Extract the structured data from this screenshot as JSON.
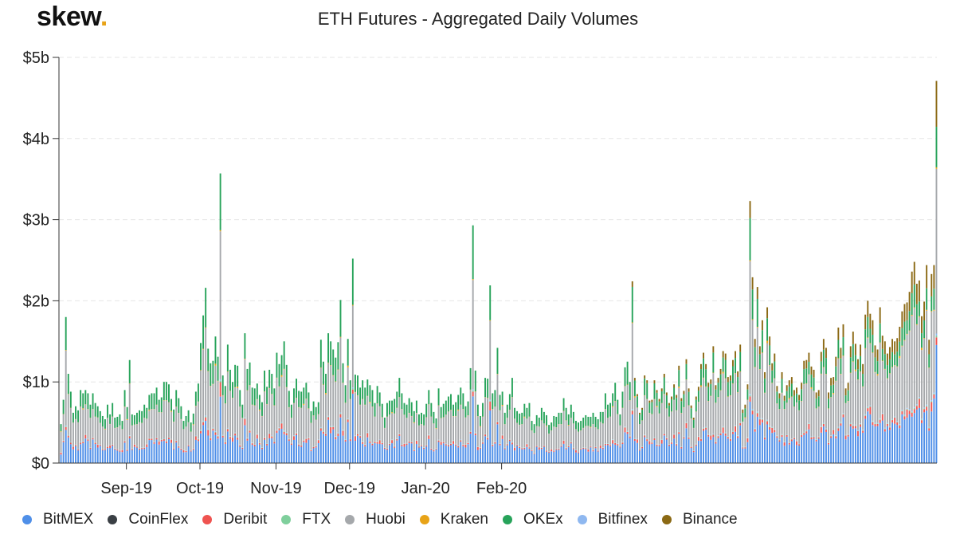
{
  "brand": {
    "name": "skew",
    "dot": "."
  },
  "chart_data": {
    "type": "bar",
    "stacked": true,
    "title": "ETH Futures - Aggregated Daily Volumes",
    "ylabel": "",
    "xlabel": "",
    "ylim": [
      0,
      5
    ],
    "y_ticks": [
      {
        "value": 0,
        "label": "$0"
      },
      {
        "value": 1,
        "label": "$1b"
      },
      {
        "value": 2,
        "label": "$2b"
      },
      {
        "value": 3,
        "label": "$3b"
      },
      {
        "value": 4,
        "label": "$4b"
      },
      {
        "value": 5,
        "label": "$5b"
      }
    ],
    "x_ticks": [
      {
        "index": 27,
        "label": "Sep-19"
      },
      {
        "index": 57,
        "label": "Oct-19"
      },
      {
        "index": 88,
        "label": "Nov-19"
      },
      {
        "index": 118,
        "label": "Dec-19"
      },
      {
        "index": 149,
        "label": "Jan-20"
      },
      {
        "index": 180,
        "label": "Feb-20"
      }
    ],
    "grid": true,
    "legend_position": "bottom",
    "series": [
      {
        "name": "BitMEX",
        "color": "#4f8fe8"
      },
      {
        "name": "CoinFlex",
        "color": "#3a3f44"
      },
      {
        "name": "Deribit",
        "color": "#ef5350"
      },
      {
        "name": "FTX",
        "color": "#7fcf9c"
      },
      {
        "name": "Huobi",
        "color": "#a5a8ab"
      },
      {
        "name": "Kraken",
        "color": "#e8a317"
      },
      {
        "name": "OKEx",
        "color": "#27a35a"
      },
      {
        "name": "Bitfinex",
        "color": "#8fb8f0"
      },
      {
        "name": "Binance",
        "color": "#8b6914"
      }
    ],
    "totals": [
      0.48,
      0.78,
      1.8,
      1.1,
      0.88,
      0.62,
      0.7,
      0.65,
      0.9,
      0.86,
      0.9,
      0.86,
      0.72,
      0.86,
      0.74,
      0.7,
      0.64,
      0.58,
      0.54,
      0.72,
      0.6,
      0.74,
      0.56,
      0.57,
      0.6,
      0.52,
      0.9,
      0.69,
      1.27,
      0.6,
      0.59,
      0.62,
      0.65,
      0.64,
      0.72,
      0.68,
      0.84,
      0.86,
      0.86,
      0.93,
      0.78,
      0.81,
      1.0,
      1.0,
      0.97,
      0.79,
      0.66,
      0.9,
      0.8,
      0.7,
      0.52,
      0.58,
      0.65,
      0.5,
      0.61,
      0.88,
      0.98,
      1.48,
      1.82,
      2.16,
      1.41,
      1.23,
      1.26,
      1.56,
      1.31,
      3.57,
      1.08,
      0.95,
      1.46,
      1.15,
      1.0,
      1.21,
      1.2,
      0.9,
      0.72,
      1.6,
      1.16,
      1.24,
      0.93,
      0.92,
      0.98,
      0.84,
      0.75,
      1.14,
      0.94,
      1.15,
      1.1,
      0.92,
      1.36,
      1.22,
      1.33,
      1.5,
      1.21,
      0.89,
      0.72,
      0.92,
      1.04,
      0.89,
      0.88,
      0.93,
      0.99,
      0.87,
      0.64,
      0.76,
      0.69,
      0.75,
      1.52,
      1.25,
      1.1,
      1.6,
      1.5,
      1.4,
      1.3,
      1.49,
      2.01,
      1.23,
      0.96,
      1.53,
      1.02,
      2.52,
      1.09,
      1.08,
      0.93,
      1.02,
      0.93,
      1.03,
      0.96,
      0.9,
      0.74,
      0.95,
      0.87,
      0.73,
      0.56,
      0.74,
      0.77,
      0.77,
      0.79,
      0.88,
      1.05,
      0.86,
      0.74,
      0.72,
      0.8,
      0.75,
      0.64,
      0.77,
      0.6,
      0.62,
      0.6,
      0.73,
      0.9,
      0.74,
      0.63,
      0.55,
      0.92,
      0.69,
      0.73,
      0.77,
      0.82,
      0.85,
      0.72,
      0.75,
      0.84,
      0.93,
      0.86,
      0.7,
      0.76,
      1.17,
      2.93,
      1.14,
      0.72,
      0.58,
      0.74,
      1.05,
      1.04,
      2.19,
      0.86,
      0.9,
      1.42,
      0.84,
      0.88,
      0.62,
      0.72,
      0.85,
      1.05,
      0.68,
      0.64,
      0.61,
      0.62,
      0.73,
      0.68,
      0.74,
      0.52,
      0.48,
      0.59,
      0.56,
      0.68,
      0.63,
      0.59,
      0.47,
      0.5,
      0.58,
      0.57,
      0.62,
      0.62,
      0.8,
      0.68,
      0.6,
      0.72,
      0.63,
      0.52,
      0.5,
      0.52,
      0.56,
      0.59,
      0.57,
      0.57,
      0.62,
      0.57,
      0.54,
      0.63,
      0.63,
      0.86,
      0.72,
      0.74,
      0.86,
      0.99,
      0.78,
      0.6,
      0.88,
      1.18,
      1.25,
      1.0,
      2.24,
      1.05,
      0.85,
      0.62,
      0.68,
      1.08,
      1.02,
      0.77,
      0.78,
      1.02,
      0.9,
      0.79,
      0.92,
      1.1,
      0.87,
      0.74,
      0.82,
      0.97,
      0.84,
      1.2,
      0.8,
      0.89,
      1.28,
      0.92,
      0.71,
      0.56,
      0.82,
      0.94,
      1.22,
      1.36,
      1.22,
      0.99,
      1.03,
      1.44,
      0.96,
      1.05,
      1.16,
      1.38,
      1.35,
      1.06,
      1.08,
      1.27,
      1.38,
      1.13,
      1.46,
      0.66,
      0.72,
      0.97,
      3.23,
      2.29,
      1.53,
      2.17,
      1.44,
      1.76,
      1.12,
      1.92,
      1.56,
      1.23,
      1.35,
      0.95,
      0.86,
      1.12,
      0.83,
      0.96,
      1.02,
      1.06,
      0.9,
      0.93,
      0.84,
      0.99,
      1.26,
      1.27,
      1.36,
      1.19,
      1.15,
      0.87,
      0.9,
      1.37,
      1.53,
      1.42,
      0.87,
      1.05,
      1.06,
      1.31,
      1.67,
      1.42,
      1.71,
      0.92,
      0.99,
      1.44,
      1.62,
      1.47,
      1.28,
      1.46,
      1.22,
      1.83,
      2.0,
      1.84,
      1.76,
      1.45,
      1.4,
      1.92,
      1.57,
      1.5,
      1.35,
      1.43,
      1.53,
      1.5,
      1.54,
      1.68,
      1.87,
      1.96,
      1.98,
      2.11,
      2.36,
      2.48,
      2.21,
      2.25,
      1.81,
      1.99,
      2.44,
      1.52,
      2.33,
      2.44,
      4.71
    ]
  },
  "legend": [
    {
      "name": "BitMEX"
    },
    {
      "name": "CoinFlex"
    },
    {
      "name": "Deribit"
    },
    {
      "name": "FTX"
    },
    {
      "name": "Huobi"
    },
    {
      "name": "Kraken"
    },
    {
      "name": "OKEx"
    },
    {
      "name": "Bitfinex"
    },
    {
      "name": "Binance"
    }
  ]
}
